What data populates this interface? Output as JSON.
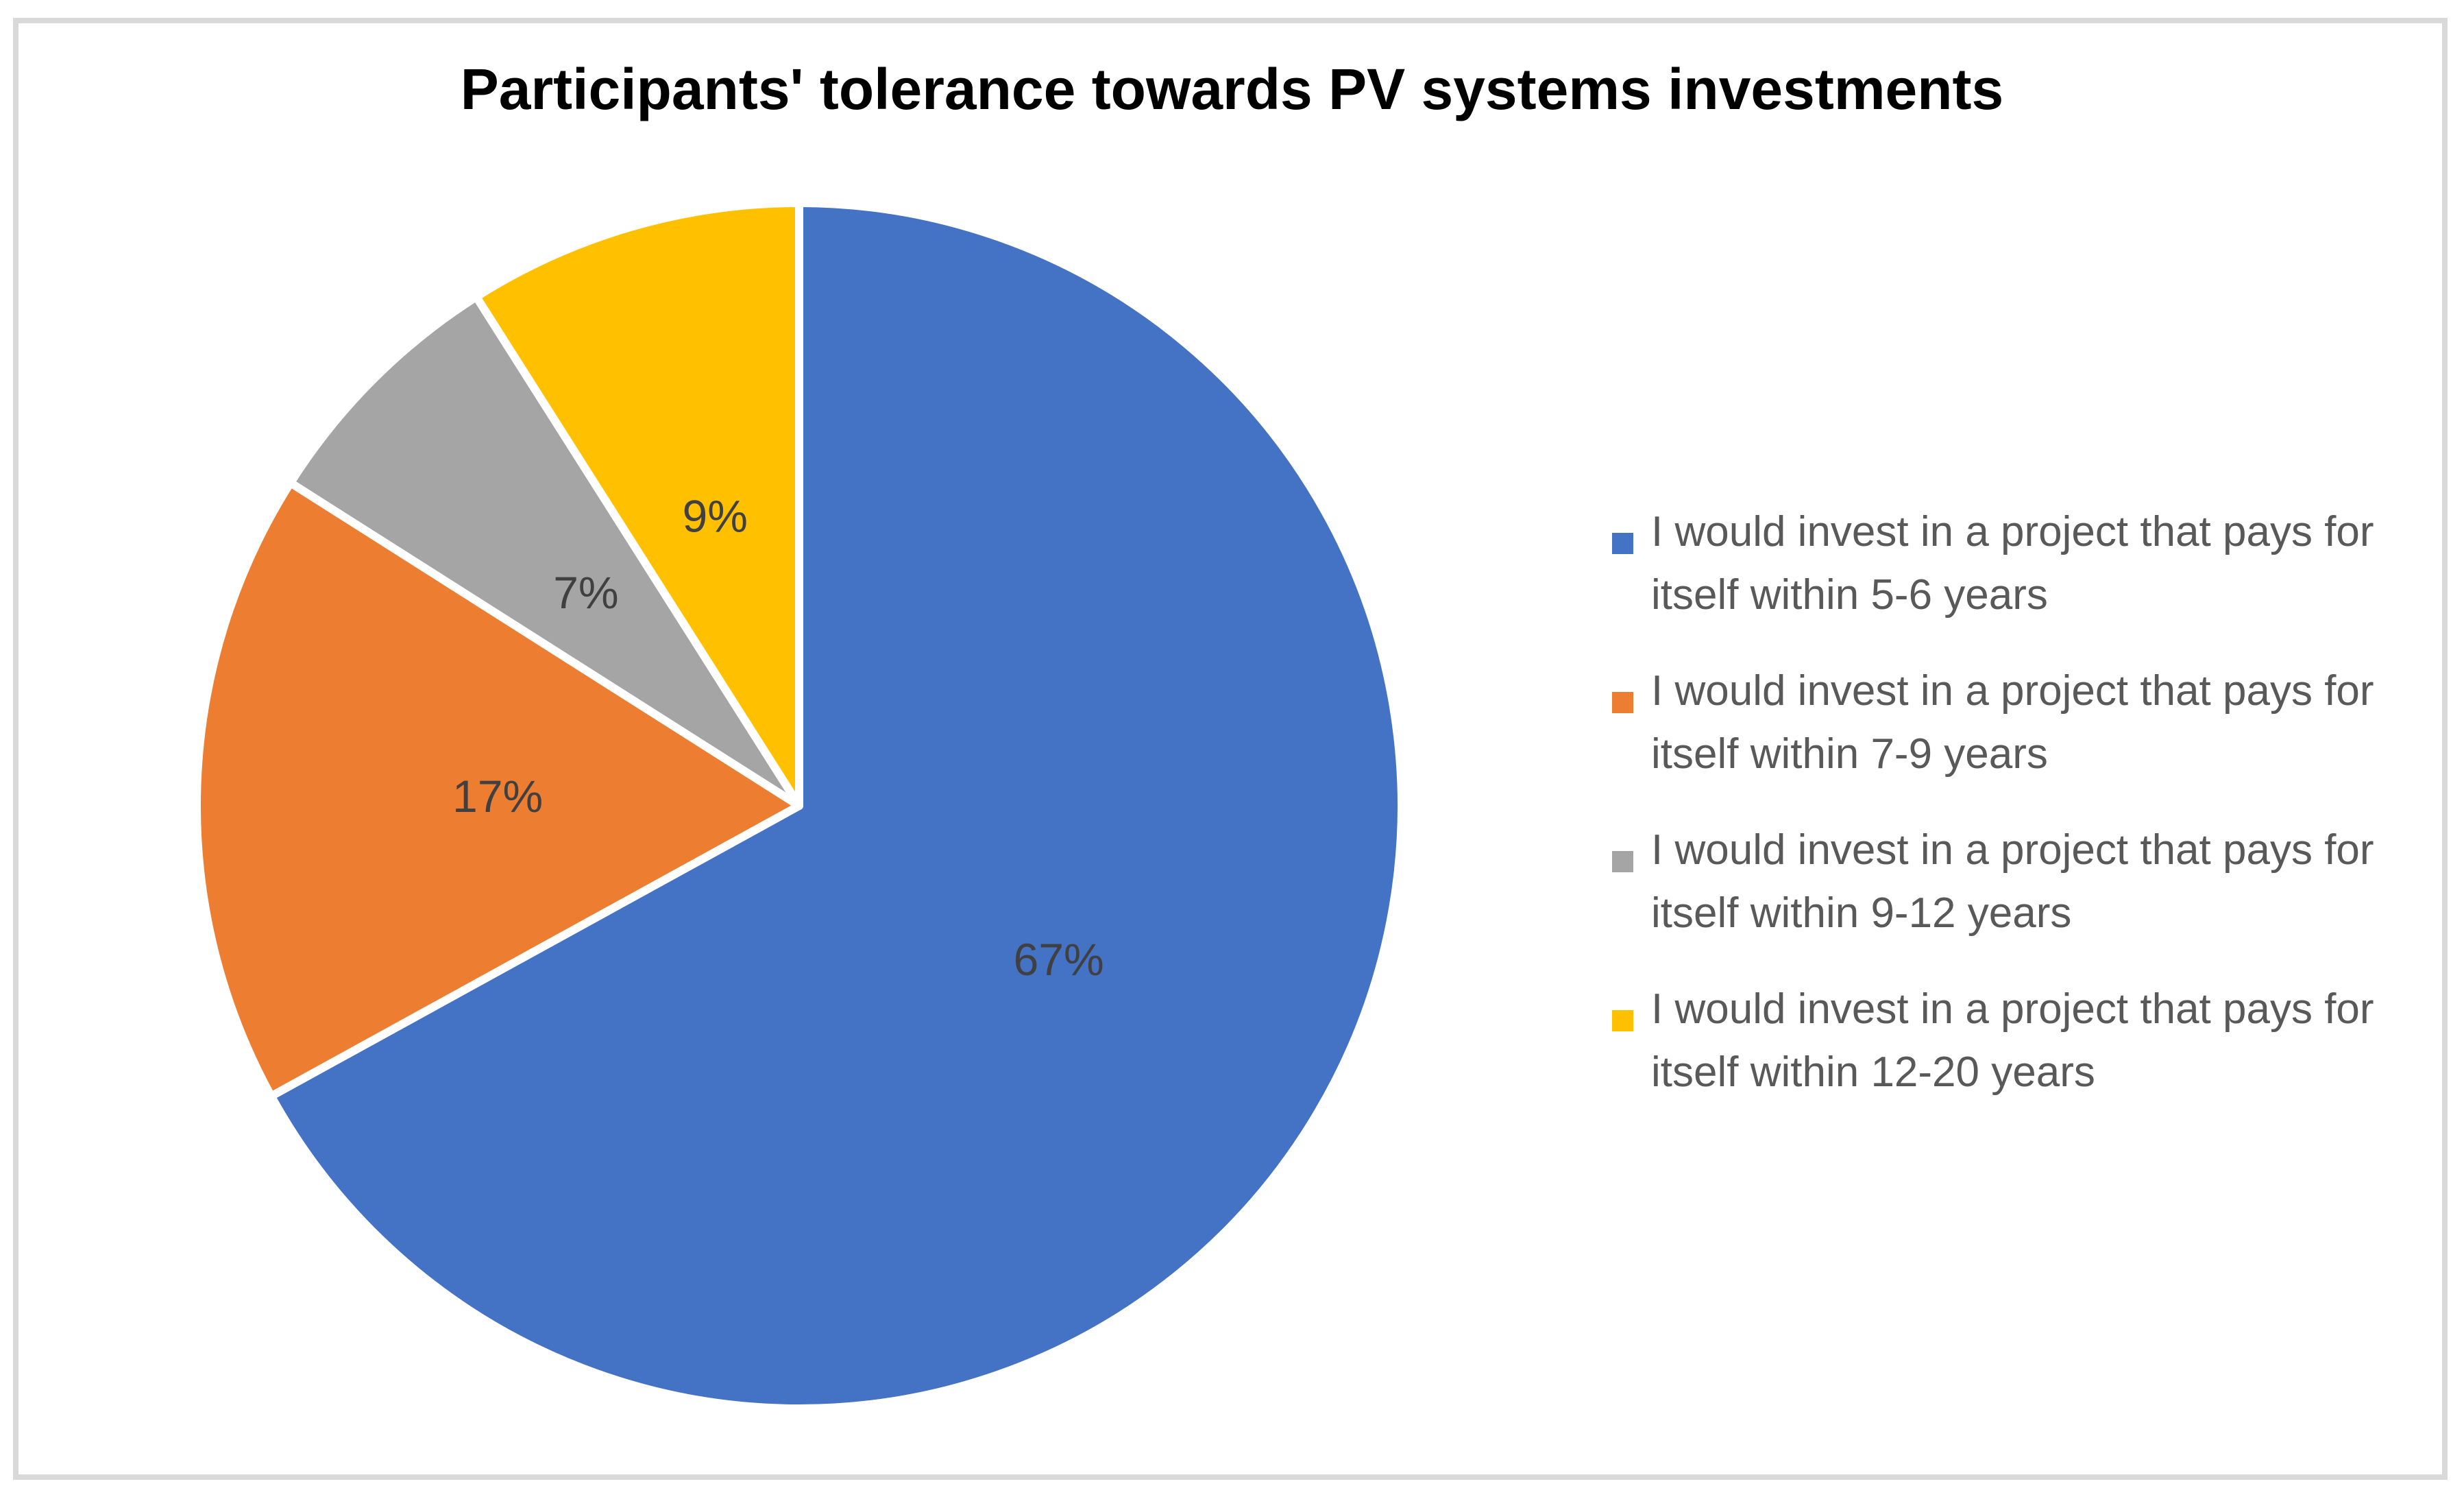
{
  "chart_data": {
    "type": "pie",
    "title": "Participants' tolerance towards PV systems investments",
    "series": [
      {
        "label": "I would invest in a project that pays for itself within 5-6 years",
        "value": 67,
        "display": "67%",
        "color": "#4472C4"
      },
      {
        "label": "I would invest in a project that pays for itself within 7-9 years",
        "value": 17,
        "display": "17%",
        "color": "#ED7D31"
      },
      {
        "label": "I would invest in a project that pays for itself within 9-12 years",
        "value": 7,
        "display": "7%",
        "color": "#A5A5A5"
      },
      {
        "label": "I would invest in a project that pays for itself within 12-20 years",
        "value": 9,
        "display": "9%",
        "color": "#FFC000"
      }
    ],
    "start_angle_deg": 0,
    "direction": "clockwise",
    "legend_position": "right",
    "grid": false,
    "slice_label_color": "#404040",
    "legend_text_color": "#595959",
    "slice_border_color": "#FFFFFF",
    "frame_border_color": "#D9D9D9",
    "background_color": "#FFFFFF"
  }
}
